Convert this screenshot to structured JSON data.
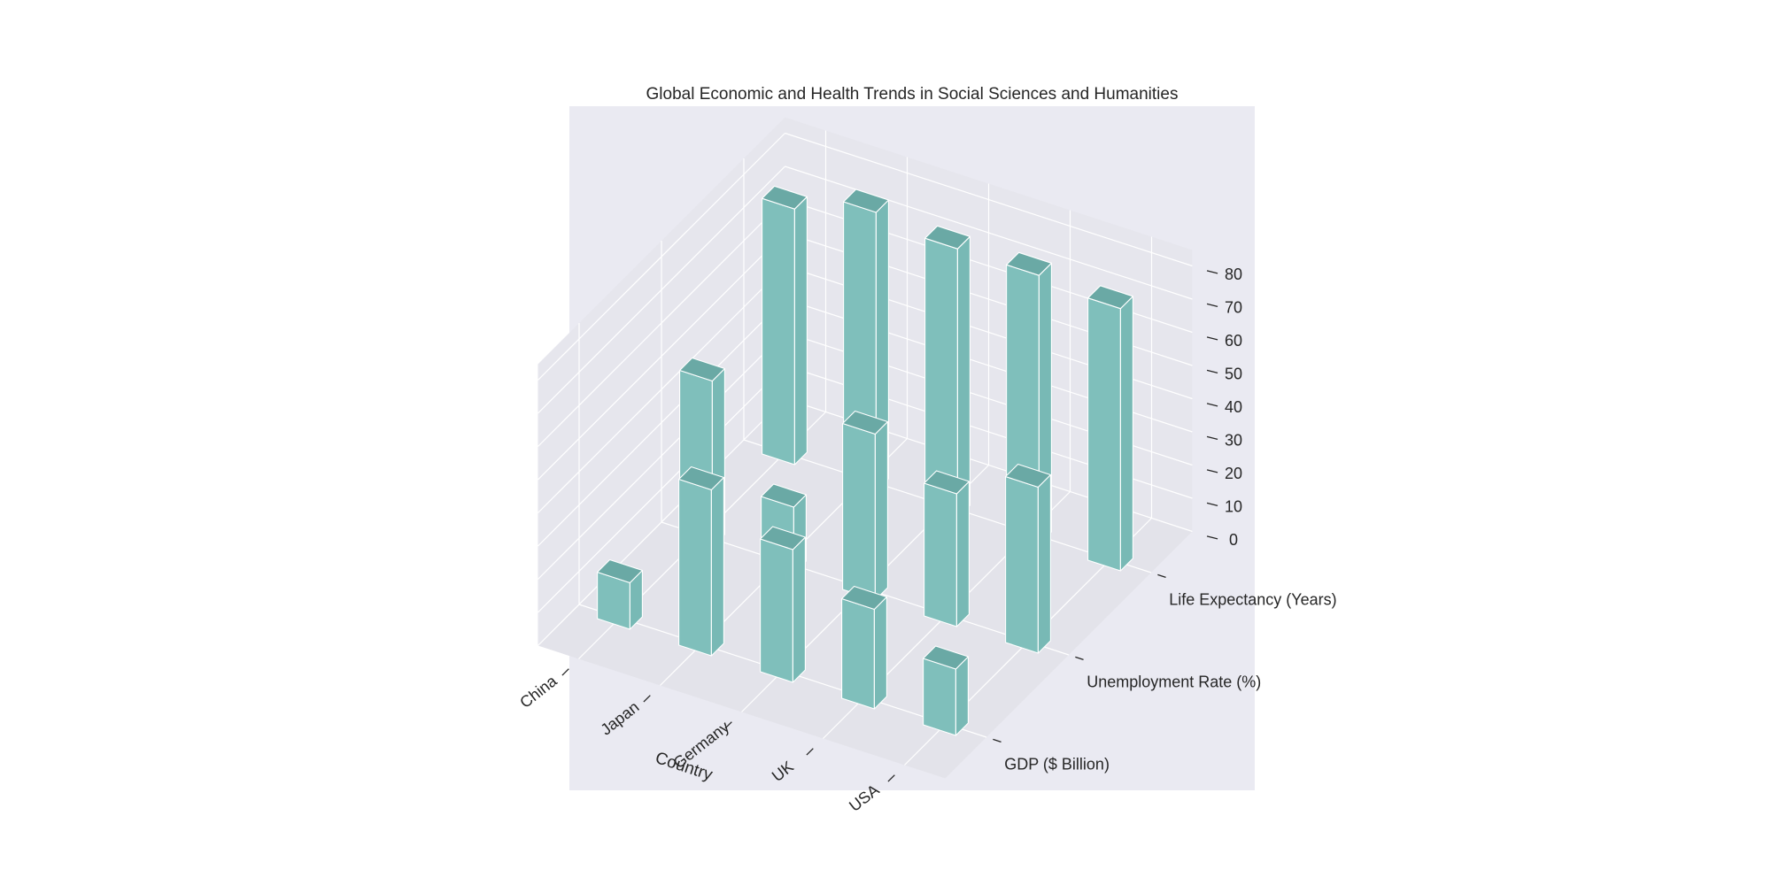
{
  "chart_data": {
    "type": "bar",
    "title": "Global Economic and Health Trends in Social Sciences and Humanities",
    "xlabel": "Country",
    "ylabel": "",
    "zlabel": "",
    "categories": [
      "China",
      "Japan",
      "Germany",
      "UK",
      "USA"
    ],
    "series_labels": [
      "GDP ($ Billion)",
      "Unemployment Rate (%)",
      "Life Expectancy (Years)"
    ],
    "series": [
      {
        "name": "GDP ($ Billion)",
        "values": [
          14,
          50,
          40,
          30,
          20
        ]
      },
      {
        "name": "Unemployment Rate (%)",
        "values": [
          50,
          20,
          50,
          40,
          50
        ]
      },
      {
        "name": "Life Expectancy (Years)",
        "values": [
          77,
          84,
          81,
          81,
          79
        ]
      }
    ],
    "zlim": [
      0,
      80
    ],
    "zticks": [
      0,
      10,
      20,
      30,
      40,
      50,
      60,
      70,
      80
    ],
    "bar_color": "#7fbfbb",
    "pane_color": "#eaeaf2",
    "grid": true
  }
}
